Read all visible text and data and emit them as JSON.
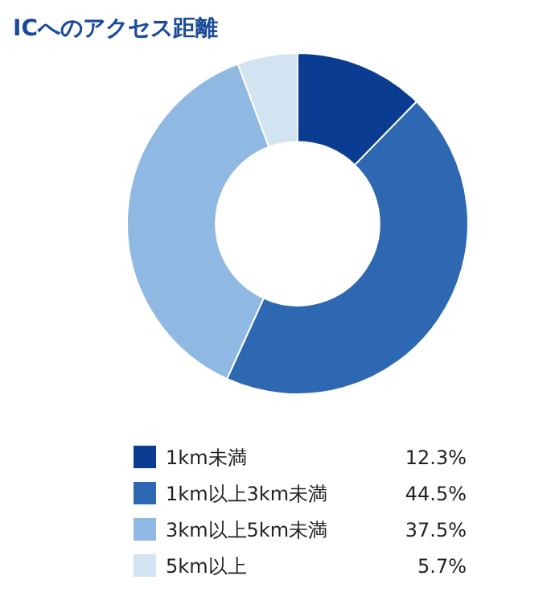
{
  "chart_data": {
    "type": "donut",
    "title": "ICへのアクセス距離",
    "categories": [
      "1km未満",
      "1km以上3km未満",
      "3km以上5km未満",
      "5km以上"
    ],
    "values": [
      12.3,
      44.5,
      37.5,
      5.7
    ],
    "colors": [
      "#0a3d91",
      "#2f68b2",
      "#8fb9e3",
      "#d2e3f1"
    ],
    "value_labels": [
      "12.3%",
      "44.5%",
      "37.5%",
      "5.7%"
    ],
    "legend": "bottom"
  }
}
